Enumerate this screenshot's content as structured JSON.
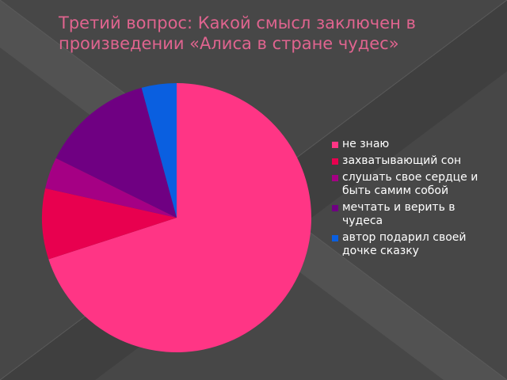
{
  "slide": {
    "title": "Третий вопрос: Какой смысл заключен в произведении «Алиса в стране чудес»"
  },
  "chart_data": {
    "type": "pie",
    "title": "Третий вопрос: Какой смысл заключен в произведении «Алиса в стране чудес»",
    "legend_position": "right",
    "start_angle": "12 o'clock, clockwise",
    "slices": [
      {
        "label": "не знаю",
        "value": 70,
        "color": "#ff3585"
      },
      {
        "label": "захватывающий сон",
        "value": 8.5,
        "color": "#e8004f"
      },
      {
        "label": "слушать свое сердце и быть самим собой",
        "value": 3.8,
        "color": "#a50084"
      },
      {
        "label": "мечтать и верить в чудеса",
        "value": 13.5,
        "color": "#6f0082"
      },
      {
        "label": "автор  подарил своей дочке сказку",
        "value": 4.2,
        "color": "#0a5fe0"
      }
    ]
  }
}
